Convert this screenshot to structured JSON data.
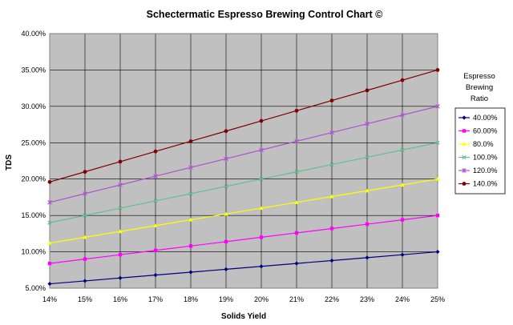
{
  "chart_data": {
    "type": "line",
    "title": "Schectermatic Espresso Brewing Control Chart ©",
    "xlabel": "Solids Yield",
    "ylabel": "TDS",
    "x": [
      14,
      15,
      16,
      17,
      18,
      19,
      20,
      21,
      22,
      23,
      24,
      25
    ],
    "x_tick_labels": [
      "14%",
      "15%",
      "16%",
      "17%",
      "18%",
      "19%",
      "20%",
      "21%",
      "22%",
      "23%",
      "24%",
      "25%"
    ],
    "xlim": [
      14,
      25
    ],
    "ylim": [
      5,
      40
    ],
    "y_ticks": [
      5,
      10,
      15,
      20,
      25,
      30,
      35,
      40
    ],
    "y_tick_labels": [
      "5.00%",
      "10.00%",
      "15.00%",
      "20.00%",
      "25.00%",
      "30.00%",
      "35.00%",
      "40.00%"
    ],
    "grid": true,
    "plot_background": "#c0c0c0",
    "legend": {
      "title_lines": [
        "Espresso",
        "Brewing",
        "Ratio"
      ],
      "placement": "right"
    },
    "series": [
      {
        "name": "40.00%",
        "color": "#000080",
        "marker": "diamond",
        "values": [
          5.6,
          6.0,
          6.4,
          6.8,
          7.2,
          7.6,
          8.0,
          8.4,
          8.8,
          9.2,
          9.6,
          10.0
        ]
      },
      {
        "name": "60.00%",
        "color": "#ff00ff",
        "marker": "square",
        "values": [
          8.4,
          9.0,
          9.6,
          10.2,
          10.8,
          11.4,
          12.0,
          12.6,
          13.2,
          13.8,
          14.4,
          15.0
        ]
      },
      {
        "name": "80.0%",
        "color": "#ffff00",
        "marker": "triangle",
        "values": [
          11.2,
          12.0,
          12.8,
          13.6,
          14.4,
          15.2,
          16.0,
          16.8,
          17.6,
          18.4,
          19.2,
          20.0
        ]
      },
      {
        "name": "100.0%",
        "color": "#66bb99",
        "marker": "x",
        "values": [
          14.0,
          15.0,
          16.0,
          17.0,
          18.0,
          19.0,
          20.0,
          21.0,
          22.0,
          23.0,
          24.0,
          25.0
        ]
      },
      {
        "name": "120.0%",
        "color": "#aa55cc",
        "marker": "star",
        "values": [
          16.8,
          18.0,
          19.2,
          20.4,
          21.6,
          22.8,
          24.0,
          25.2,
          26.4,
          27.6,
          28.8,
          30.0
        ]
      },
      {
        "name": "140.0%",
        "color": "#800000",
        "marker": "circle",
        "values": [
          19.6,
          21.0,
          22.4,
          23.8,
          25.2,
          26.6,
          28.0,
          29.4,
          30.8,
          32.2,
          33.6,
          35.0
        ]
      }
    ]
  }
}
